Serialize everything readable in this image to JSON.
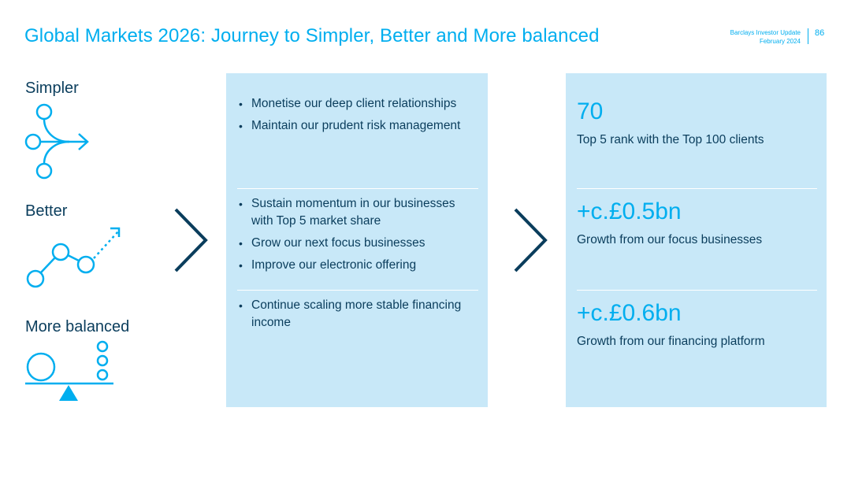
{
  "title": "Global Markets 2026: Journey to Simpler, Better and More balanced",
  "header": {
    "source": "Barclays Investor Update",
    "date": "February 2024",
    "page_number": "86"
  },
  "pillars": [
    {
      "label": "Simpler",
      "icon": "branching-arrow-icon"
    },
    {
      "label": "Better",
      "icon": "growth-line-icon"
    },
    {
      "label": "More balanced",
      "icon": "balance-scale-icon"
    }
  ],
  "actions": {
    "groups": [
      {
        "items": [
          "Monetise our deep client relationships",
          "Maintain our prudent risk management"
        ]
      },
      {
        "items": [
          "Sustain momentum in our businesses with Top 5 market share",
          "Grow our next focus businesses",
          "Improve our electronic offering"
        ]
      },
      {
        "items": [
          "Continue scaling more stable financing income"
        ]
      }
    ]
  },
  "metrics": [
    {
      "value": "70",
      "description": "Top 5 rank with the Top 100 clients"
    },
    {
      "value": "+c.£0.5bn",
      "description": "Growth from our focus businesses"
    },
    {
      "value": "+c.£0.6bn",
      "description": "Growth from our financing platform"
    }
  ],
  "colors": {
    "accent": "#00aeef",
    "navy": "#0a3d5c",
    "panel": "#c8e8f8"
  }
}
